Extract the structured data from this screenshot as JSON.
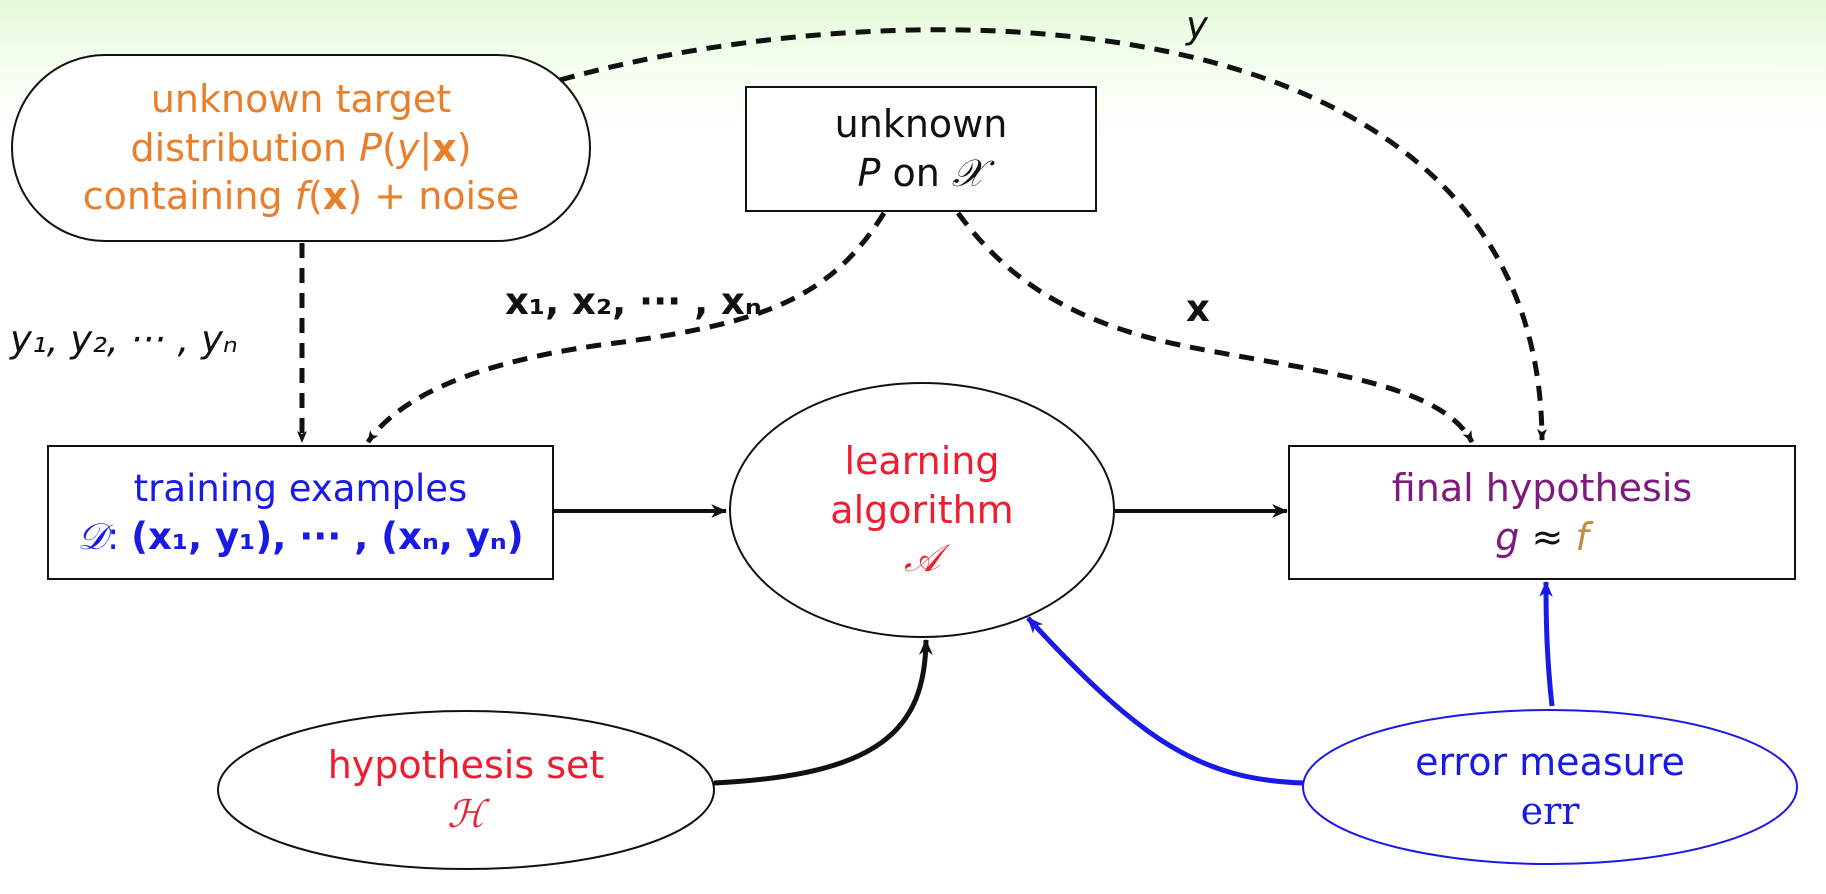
{
  "target": {
    "line1": "unknown target",
    "line2_text": "distribution ",
    "line2_math_p": "P",
    "line2_open": "(",
    "line2_y": "y",
    "line2_bar": "|",
    "line2_x": "x",
    "line2_close": ")",
    "line3_text": "containing ",
    "line3_f": "f",
    "line3_open": "(",
    "line3_x": "x",
    "line3_rest": ") + noise"
  },
  "input_dist": {
    "line1": "unknown",
    "p": "P",
    "on": " on ",
    "calx": "𝒳"
  },
  "training": {
    "title": "training examples",
    "d_symbol": "𝒟",
    "colon": ":",
    "examples": "(x₁, y₁), ··· , (xₙ, yₙ)"
  },
  "algorithm": {
    "line1": "learning",
    "line2": "algorithm",
    "symbol": "𝒜"
  },
  "final": {
    "title": "final hypothesis",
    "g": "g",
    "approx": " ≈ ",
    "f": "f"
  },
  "hypothesis_set": {
    "title": "hypothesis set",
    "symbol": "ℋ"
  },
  "error": {
    "title": "error measure",
    "symbol": "err"
  },
  "labels": {
    "y_top": "y",
    "y_list": "y₁, y₂, ··· , yₙ",
    "x_list": "x₁, x₂, ··· , xₙ",
    "x_single": "x"
  },
  "colors": {
    "orange": "#e97e2b",
    "blue": "#1a1ae6",
    "red": "#ee1d2f",
    "purple": "#7d1a7d",
    "tan": "#c88a45",
    "black": "#111111",
    "background_top": "#e3f9d8"
  }
}
